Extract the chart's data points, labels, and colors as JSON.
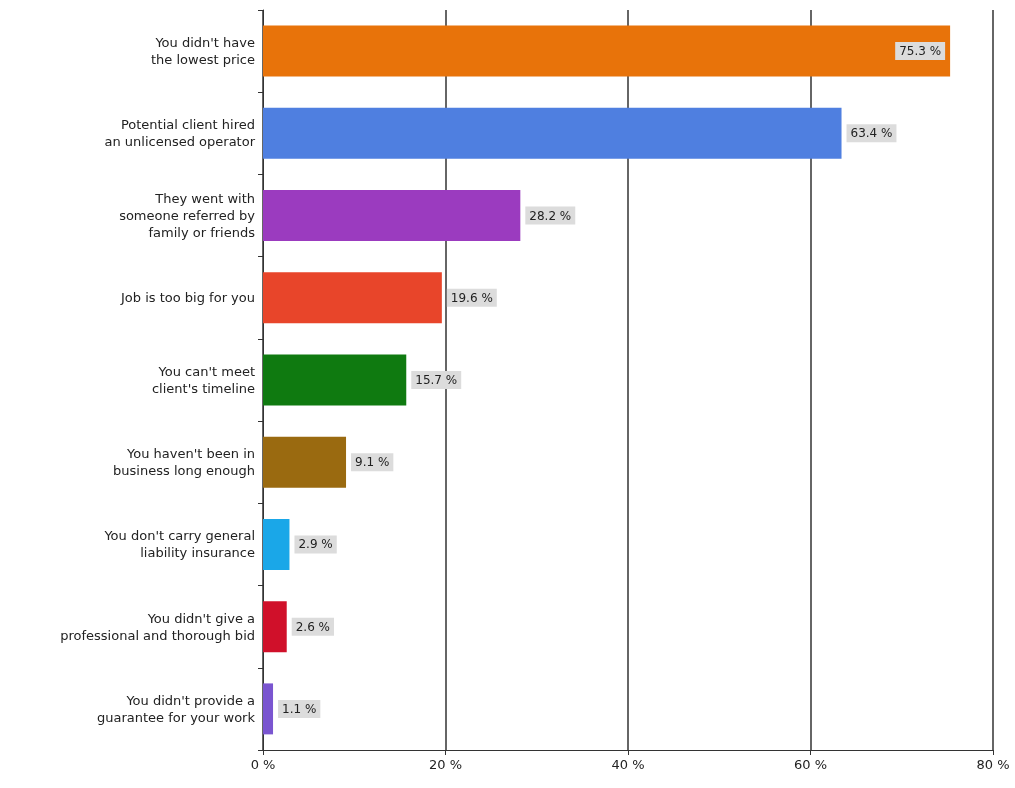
{
  "chart_data": {
    "type": "bar",
    "orientation": "horizontal",
    "categories": [
      "You didn't have\nthe lowest price",
      "Potential client hired\nan unlicensed operator",
      "They went with\nsomeone referred by\nfamily or friends",
      "Job is too big for you",
      "You can't meet\nclient's timeline",
      "You haven't been in\nbusiness long enough",
      "You don't carry general\nliability insurance",
      "You didn't give a\nprofessional and thorough bid",
      "You didn't provide a\nguarantee for your work"
    ],
    "values": [
      75.3,
      63.4,
      28.2,
      19.6,
      15.7,
      9.1,
      2.9,
      2.6,
      1.1
    ],
    "value_labels": [
      "75.3 %",
      "63.4 %",
      "28.2 %",
      "19.6 %",
      "15.7 %",
      "9.1 %",
      "2.9 %",
      "2.6 %",
      "1.1 %"
    ],
    "colors": [
      "#e8730a",
      "#4f7fe0",
      "#9b3bbf",
      "#e8452a",
      "#0f7a10",
      "#9a6a10",
      "#1aa7e8",
      "#d0102a",
      "#7a55d0"
    ],
    "xlim": [
      0,
      80
    ],
    "xticks": [
      {
        "value": 0,
        "label": "0 %"
      },
      {
        "value": 20,
        "label": "20 %"
      },
      {
        "value": 40,
        "label": "40 %"
      },
      {
        "value": 60,
        "label": "60 %"
      },
      {
        "value": 80,
        "label": "80 %"
      }
    ],
    "grid": "x"
  }
}
